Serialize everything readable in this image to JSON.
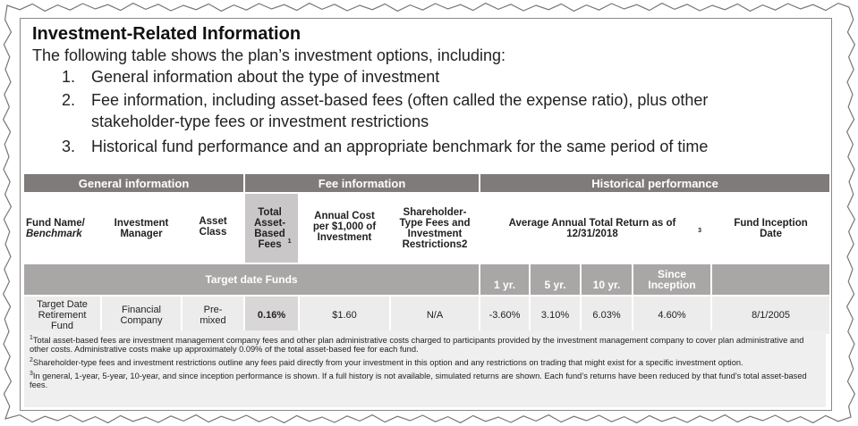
{
  "header": {
    "title": "Investment-Related Information",
    "intro": "The following table shows the plan’s investment options, including:"
  },
  "list": [
    {
      "number": "1.",
      "text": "General information about the type of investment"
    },
    {
      "number": "2.",
      "text": "Fee information, including asset-based fees (often called the expense ratio), plus other stakeholder-type fees or investment restrictions"
    },
    {
      "number": "3.",
      "text": "Historical fund performance and an appropriate benchmark for the same period of time"
    }
  ],
  "table": {
    "group_headers": [
      "General information",
      "Fee information",
      "Historical performance"
    ],
    "columns": {
      "fund_name": "Fund Name/",
      "benchmark": "Benchmark",
      "manager": "Investment Manager",
      "asset_class": "Asset Class",
      "total_fees": "Total Asset-Based Fees",
      "total_fees_note": "1",
      "annual_cost": "Annual Cost per $1,000 of Investment",
      "shareholder_fees": "Shareholder-Type Fees and Investment Restrictions2",
      "avg_return": "Average Annual Total Return as of 12/31/2018",
      "avg_return_note": "3",
      "inception_date": "Fund Inception Date"
    },
    "section": {
      "label": "Target date Funds",
      "periods": [
        "1 yr.",
        "5 yr.",
        "10 yr.",
        "Since Inception"
      ]
    },
    "rows": [
      [
        "Target Date Retirement Fund",
        "Financial Company",
        "Pre-mixed",
        "0.16%",
        "$1.60",
        "N/A",
        "-3.60%",
        "3.10%",
        "6.03%",
        "4.60%",
        "8/1/2005"
      ]
    ]
  },
  "footnotes": [
    {
      "mark": "1",
      "text": "Total asset-based fees are investment management company fees and other plan administrative costs charged to participants provided by the investment management company to cover plan administrative and other costs. Administrative costs make up approximately 0.09% of the total asset-based fee for each fund."
    },
    {
      "mark": "2",
      "text": "Shareholder-type fees and investment restrictions outline any fees paid directly from your investment in this option and any restrictions on trading that might exist for a specific investment option."
    },
    {
      "mark": "3",
      "text": "In general, 1-year, 5-year, 10-year, and since inception performance is shown. If a full history is not available, simulated returns are shown. Each fund’s returns have been reduced by that fund’s total asset-based fees."
    }
  ]
}
